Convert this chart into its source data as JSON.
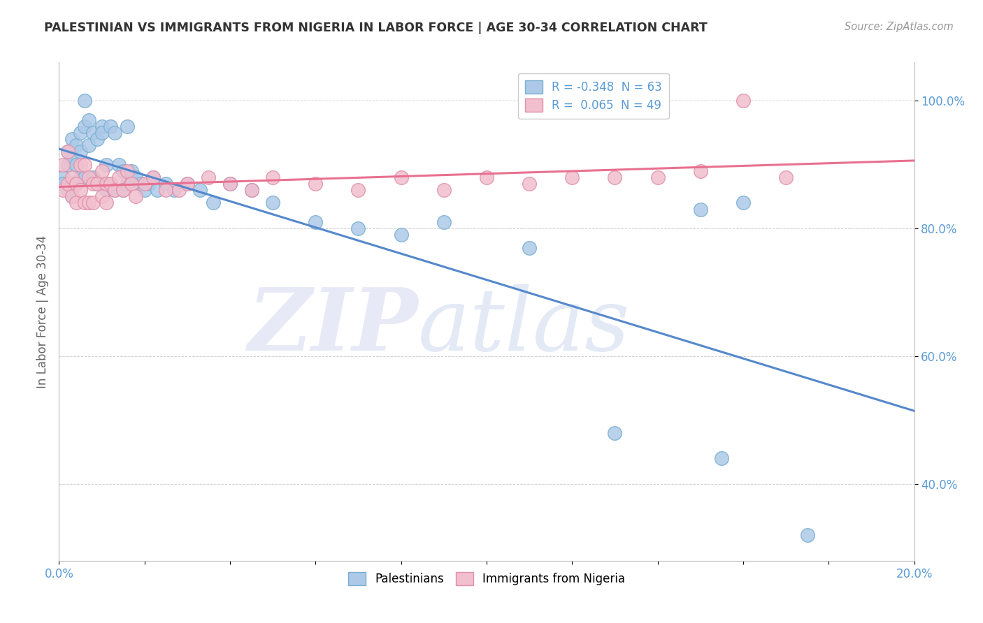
{
  "title": "PALESTINIAN VS IMMIGRANTS FROM NIGERIA IN LABOR FORCE | AGE 30-34 CORRELATION CHART",
  "source": "Source: ZipAtlas.com",
  "ylabel": "In Labor Force | Age 30-34",
  "xlim": [
    0.0,
    0.2
  ],
  "ylim": [
    0.28,
    1.06
  ],
  "xticks": [
    0.0,
    0.02,
    0.04,
    0.06,
    0.08,
    0.1,
    0.12,
    0.14,
    0.16,
    0.18,
    0.2
  ],
  "yticks": [
    0.4,
    0.6,
    0.8,
    1.0
  ],
  "blue_color": "#adc9e8",
  "pink_color": "#f2bfce",
  "blue_edge": "#7aafd0",
  "pink_edge": "#e090a8",
  "trend_blue": "#5588cc",
  "trend_pink": "#e87090",
  "legend_R_blue": "-0.348",
  "legend_N_blue": "63",
  "legend_R_pink": "0.065",
  "legend_N_pink": "49",
  "title_color": "#333333",
  "axis_color": "#bbbbbb",
  "grid_color": "#cccccc",
  "tick_color": "#5b9bd5",
  "background_color": "#ffffff",
  "palestinians_x": [
    0.001,
    0.001,
    0.002,
    0.002,
    0.002,
    0.003,
    0.003,
    0.003,
    0.003,
    0.004,
    0.004,
    0.004,
    0.005,
    0.005,
    0.005,
    0.006,
    0.006,
    0.006,
    0.007,
    0.007,
    0.008,
    0.008,
    0.009,
    0.009,
    0.01,
    0.01,
    0.01,
    0.011,
    0.011,
    0.012,
    0.012,
    0.013,
    0.013,
    0.014,
    0.015,
    0.015,
    0.016,
    0.016,
    0.017,
    0.018,
    0.019,
    0.02,
    0.021,
    0.022,
    0.023,
    0.025,
    0.027,
    0.03,
    0.033,
    0.036,
    0.04,
    0.045,
    0.05,
    0.06,
    0.07,
    0.08,
    0.09,
    0.11,
    0.13,
    0.15,
    0.155,
    0.16,
    0.175
  ],
  "palestinians_y": [
    0.88,
    0.87,
    0.92,
    0.9,
    0.86,
    0.94,
    0.91,
    0.87,
    0.85,
    0.93,
    0.9,
    0.87,
    0.95,
    0.92,
    0.88,
    0.96,
    1.0,
    0.88,
    0.97,
    0.93,
    0.95,
    0.88,
    0.94,
    0.87,
    0.96,
    0.95,
    0.87,
    0.9,
    0.86,
    0.96,
    0.87,
    0.95,
    0.86,
    0.9,
    0.89,
    0.86,
    0.96,
    0.87,
    0.89,
    0.88,
    0.87,
    0.86,
    0.87,
    0.88,
    0.86,
    0.87,
    0.86,
    0.87,
    0.86,
    0.84,
    0.87,
    0.86,
    0.84,
    0.81,
    0.8,
    0.79,
    0.81,
    0.77,
    0.48,
    0.83,
    0.44,
    0.84,
    0.32
  ],
  "nigeria_x": [
    0.001,
    0.001,
    0.002,
    0.002,
    0.003,
    0.003,
    0.004,
    0.004,
    0.005,
    0.005,
    0.006,
    0.006,
    0.007,
    0.007,
    0.008,
    0.008,
    0.009,
    0.01,
    0.01,
    0.011,
    0.011,
    0.012,
    0.013,
    0.014,
    0.015,
    0.016,
    0.017,
    0.018,
    0.02,
    0.022,
    0.025,
    0.028,
    0.03,
    0.035,
    0.04,
    0.045,
    0.05,
    0.06,
    0.07,
    0.08,
    0.09,
    0.1,
    0.11,
    0.12,
    0.13,
    0.14,
    0.15,
    0.16,
    0.17
  ],
  "nigeria_y": [
    0.9,
    0.86,
    0.92,
    0.87,
    0.88,
    0.85,
    0.87,
    0.84,
    0.9,
    0.86,
    0.9,
    0.84,
    0.88,
    0.84,
    0.87,
    0.84,
    0.87,
    0.89,
    0.85,
    0.87,
    0.84,
    0.87,
    0.86,
    0.88,
    0.86,
    0.89,
    0.87,
    0.85,
    0.87,
    0.88,
    0.86,
    0.86,
    0.87,
    0.88,
    0.87,
    0.86,
    0.88,
    0.87,
    0.86,
    0.88,
    0.86,
    0.88,
    0.87,
    0.88,
    0.88,
    0.88,
    0.89,
    1.0,
    0.88
  ]
}
